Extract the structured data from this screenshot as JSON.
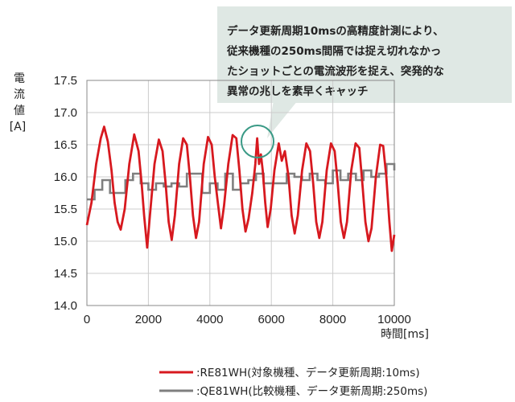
{
  "chart_data": {
    "type": "line",
    "ylabel": [
      "電",
      "流",
      "値",
      "[A]"
    ],
    "xlabel": "時間[ms]",
    "xlim": [
      0,
      10000
    ],
    "ylim": [
      14.0,
      17.5
    ],
    "xticks": [
      "0",
      "2000",
      "4000",
      "6000",
      "8000",
      "10000"
    ],
    "yticks": [
      "14.0",
      "14.5",
      "15.0",
      "15.5",
      "16.0",
      "16.5",
      "17.0",
      "17.5"
    ],
    "grid": true,
    "legend_position": "bottom",
    "colors": {
      "primary": "#d7191f",
      "secondary": "#7f7f7f",
      "callout_bg": "#dfe8e4",
      "callout_ring": "#3a9a86"
    },
    "annotation": {
      "lines": [
        "データ更新周期10msの高精度計測により、",
        "従来機種の250ms間隔では捉え切れなかっ",
        "たショットごとの電流波形を捉え、突発的な",
        "異常の兆しを素早くキャッチ"
      ],
      "highlight_x": 5550,
      "highlight_y": 16.55
    },
    "series": [
      {
        "name": ":RE81WH(対象機種、データ更新周期:10ms)",
        "points": [
          [
            0,
            15.25
          ],
          [
            150,
            15.6
          ],
          [
            300,
            16.2
          ],
          [
            450,
            16.6
          ],
          [
            560,
            16.78
          ],
          [
            680,
            16.55
          ],
          [
            800,
            16.1
          ],
          [
            900,
            15.6
          ],
          [
            1000,
            15.3
          ],
          [
            1100,
            15.18
          ],
          [
            1230,
            15.5
          ],
          [
            1380,
            16.2
          ],
          [
            1540,
            16.66
          ],
          [
            1680,
            16.4
          ],
          [
            1780,
            15.9
          ],
          [
            1860,
            15.4
          ],
          [
            1960,
            14.9
          ],
          [
            2050,
            15.4
          ],
          [
            2200,
            16.2
          ],
          [
            2340,
            16.58
          ],
          [
            2460,
            16.4
          ],
          [
            2560,
            15.9
          ],
          [
            2660,
            15.3
          ],
          [
            2760,
            15.02
          ],
          [
            2860,
            15.4
          ],
          [
            3000,
            16.2
          ],
          [
            3130,
            16.6
          ],
          [
            3250,
            16.5
          ],
          [
            3350,
            16.0
          ],
          [
            3450,
            15.4
          ],
          [
            3550,
            15.05
          ],
          [
            3650,
            15.3
          ],
          [
            3800,
            16.2
          ],
          [
            3940,
            16.62
          ],
          [
            4060,
            16.5
          ],
          [
            4160,
            16.0
          ],
          [
            4260,
            15.6
          ],
          [
            4360,
            15.2
          ],
          [
            4460,
            15.55
          ],
          [
            4600,
            16.2
          ],
          [
            4740,
            16.65
          ],
          [
            4860,
            16.6
          ],
          [
            4960,
            16.1
          ],
          [
            5060,
            15.5
          ],
          [
            5160,
            15.15
          ],
          [
            5260,
            15.35
          ],
          [
            5380,
            15.75
          ],
          [
            5480,
            16.2
          ],
          [
            5540,
            16.6
          ],
          [
            5600,
            16.2
          ],
          [
            5660,
            16.35
          ],
          [
            5720,
            16.1
          ],
          [
            5800,
            15.6
          ],
          [
            5880,
            15.22
          ],
          [
            5980,
            15.5
          ],
          [
            6100,
            16.1
          ],
          [
            6240,
            16.52
          ],
          [
            6340,
            16.25
          ],
          [
            6440,
            16.4
          ],
          [
            6560,
            16.0
          ],
          [
            6660,
            15.4
          ],
          [
            6760,
            15.12
          ],
          [
            6860,
            15.4
          ],
          [
            7000,
            16.1
          ],
          [
            7140,
            16.52
          ],
          [
            7260,
            16.4
          ],
          [
            7360,
            15.9
          ],
          [
            7460,
            15.3
          ],
          [
            7560,
            15.05
          ],
          [
            7660,
            15.3
          ],
          [
            7800,
            16.1
          ],
          [
            7940,
            16.52
          ],
          [
            8060,
            16.4
          ],
          [
            8160,
            15.9
          ],
          [
            8260,
            15.3
          ],
          [
            8360,
            15.05
          ],
          [
            8460,
            15.3
          ],
          [
            8600,
            16.1
          ],
          [
            8740,
            16.52
          ],
          [
            8860,
            16.45
          ],
          [
            8960,
            15.9
          ],
          [
            9060,
            15.3
          ],
          [
            9160,
            15.0
          ],
          [
            9260,
            15.2
          ],
          [
            9400,
            16.0
          ],
          [
            9540,
            16.5
          ],
          [
            9640,
            16.48
          ],
          [
            9740,
            16.0
          ],
          [
            9840,
            15.3
          ],
          [
            9920,
            14.85
          ],
          [
            10000,
            15.1
          ]
        ]
      },
      {
        "name": ":QE81WH(比較機種、データ更新周期:250ms)",
        "points": [
          [
            0,
            15.65
          ],
          [
            250,
            15.8
          ],
          [
            500,
            15.95
          ],
          [
            750,
            15.75
          ],
          [
            1000,
            15.75
          ],
          [
            1250,
            15.95
          ],
          [
            1500,
            16.05
          ],
          [
            1750,
            15.9
          ],
          [
            2000,
            15.8
          ],
          [
            2250,
            15.9
          ],
          [
            2500,
            15.85
          ],
          [
            2750,
            15.9
          ],
          [
            3000,
            15.85
          ],
          [
            3250,
            16.05
          ],
          [
            3500,
            16.05
          ],
          [
            3750,
            15.75
          ],
          [
            4000,
            15.9
          ],
          [
            4250,
            15.8
          ],
          [
            4500,
            16.05
          ],
          [
            4750,
            15.8
          ],
          [
            5000,
            15.9
          ],
          [
            5250,
            15.95
          ],
          [
            5500,
            16.05
          ],
          [
            5750,
            15.9
          ],
          [
            6000,
            15.9
          ],
          [
            6250,
            15.9
          ],
          [
            6500,
            16.05
          ],
          [
            6750,
            16.0
          ],
          [
            7000,
            15.95
          ],
          [
            7250,
            16.05
          ],
          [
            7500,
            15.95
          ],
          [
            7750,
            15.9
          ],
          [
            8000,
            16.1
          ],
          [
            8250,
            15.95
          ],
          [
            8500,
            16.05
          ],
          [
            8750,
            15.95
          ],
          [
            9000,
            16.1
          ],
          [
            9250,
            16.0
          ],
          [
            9500,
            16.05
          ],
          [
            9750,
            16.2
          ],
          [
            10000,
            16.1
          ]
        ]
      }
    ]
  }
}
